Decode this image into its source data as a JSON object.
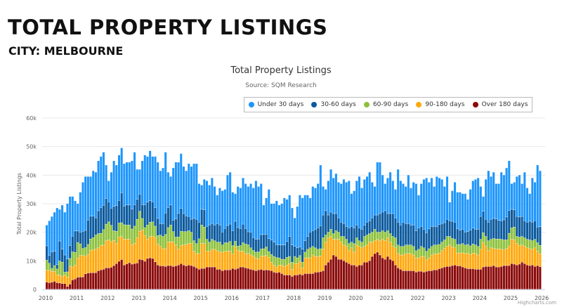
{
  "header": {
    "title": "TOTAL PROPERTY LISTINGS",
    "subtitle": "CITY: MELBOURNE"
  },
  "credit": "Highcharts.com",
  "chart_data": {
    "type": "bar",
    "stacked": true,
    "title": "Total Property Listings",
    "subtitle": "Source: SQM Research",
    "ylabel": "Total Property Listings",
    "xlabel": "",
    "x_start": "2010-01",
    "x_interval": "month",
    "ylim": [
      0,
      60
    ],
    "y_ticks": [
      {
        "v": 0,
        "label": "0"
      },
      {
        "v": 10,
        "label": "10k"
      },
      {
        "v": 20,
        "label": "20k"
      },
      {
        "v": 30,
        "label": "30k"
      },
      {
        "v": 40,
        "label": "40k"
      },
      {
        "v": 50,
        "label": "50k"
      },
      {
        "v": 60,
        "label": "60k"
      }
    ],
    "x_ticks": [
      "2010",
      "2011",
      "2012",
      "2013",
      "2014",
      "2015",
      "2016",
      "2017",
      "2018",
      "2019",
      "2020",
      "2021",
      "2022",
      "2023",
      "2024",
      "2025",
      "2026"
    ],
    "grid": true,
    "legend": "top-right",
    "series": [
      {
        "name": "Under 30 days",
        "color": "#1e96fc",
        "values": [
          7.3,
          12.1,
          12.4,
          13.7,
          19.9,
          11.1,
          15.5,
          15,
          19.4,
          17.2,
          13.9,
          10.6,
          9.6,
          14.1,
          17.2,
          18.9,
          15.3,
          13.9,
          15.9,
          16,
          17.5,
          17.9,
          18.6,
          11.7,
          7.4,
          12.6,
          16,
          14.2,
          15.9,
          15.7,
          14.9,
          15,
          15,
          16.9,
          18.4,
          10.5,
          8.7,
          15.4,
          17.4,
          16,
          17.5,
          15.9,
          17.9,
          19.7,
          18.5,
          19.5,
          21.3,
          12.4,
          10,
          18.3,
          19.9,
          17.9,
          19.2,
          16.5,
          15.8,
          18.5,
          18.5,
          19.2,
          19.5,
          13.5,
          8.5,
          10.7,
          16,
          14,
          16,
          13.5,
          10,
          13,
          14.5,
          13.7,
          17.7,
          18.2,
          13.5,
          9.7,
          14.4,
          14.2,
          16.2,
          15.7,
          15.9,
          17,
          17.4,
          20.5,
          18.4,
          17.9,
          10.3,
          12.7,
          17.3,
          12.8,
          13.5,
          15.4,
          14,
          14.5,
          16.5,
          14.8,
          14.5,
          13,
          10,
          14.5,
          18.2,
          18,
          16,
          14.5,
          12,
          15.5,
          14.5,
          15.5,
          21.3,
          10,
          7.5,
          12,
          15,
          12.5,
          14,
          12.5,
          13.5,
          15.5,
          15.5,
          16.5,
          11.5,
          13,
          15.5,
          18,
          14.5,
          16,
          16,
          17,
          12.5,
          10,
          18.5,
          18,
          13,
          9.5,
          12.5,
          14.5,
          11.5,
          10,
          18.5,
          15.5,
          13.5,
          13,
          17,
          13,
          15,
          16.5,
          11.5,
          15,
          17.5,
          19.2,
          16.3,
          17,
          14,
          17.5,
          16.3,
          15.5,
          12.7,
          15,
          6.5,
          10.7,
          14,
          12.8,
          13.3,
          12.5,
          13.5,
          11.3,
          14.3,
          16.6,
          17.5,
          18,
          10.5,
          5.2,
          14,
          18,
          15,
          16.2,
          12.4,
          12.9,
          17,
          15.7,
          17.2,
          17.4,
          9,
          9.7,
          14,
          14.7,
          11.5,
          17,
          12,
          9.7,
          15.5,
          13.5,
          21.7,
          19.6
        ]
      },
      {
        "name": "30-60 days",
        "color": "#0b5a9e",
        "values": [
          5,
          2.8,
          5.8,
          5,
          1.5,
          7,
          4.5,
          6,
          4.5,
          4.5,
          5.5,
          7.5,
          4,
          4,
          6,
          6,
          8.5,
          8,
          7.5,
          6,
          8,
          9,
          8.5,
          9,
          7,
          6,
          8.5,
          9,
          7.9,
          10.5,
          6.5,
          7,
          7,
          7,
          7.5,
          7,
          6,
          4.8,
          8,
          8,
          7.5,
          7,
          6.5,
          6,
          4,
          4.5,
          7.5,
          7,
          7,
          4,
          6.3,
          8.3,
          8,
          6.3,
          5.5,
          5,
          4.5,
          7.8,
          8.5,
          5.8,
          5.5,
          6,
          4.5,
          6,
          5.5,
          5.5,
          6.5,
          6,
          4.5,
          5,
          6,
          6,
          5.2,
          7,
          6.5,
          6,
          6.5,
          5.5,
          4.5,
          5.5,
          4.5,
          4.5,
          4.5,
          5,
          5,
          4.5,
          4.5,
          5,
          5,
          4.5,
          4.5,
          5,
          5,
          5.5,
          7,
          6,
          3.5,
          3.5,
          3,
          4.5,
          4,
          4.5,
          5.5,
          5.5,
          6.5,
          7.5,
          8,
          8,
          8.5,
          6,
          6,
          7,
          6,
          5,
          5,
          4.5,
          4.5,
          5.5,
          5.5,
          5.5,
          4.5,
          4.5,
          4.5,
          4,
          4.5,
          4.5,
          5,
          5,
          6,
          6.5,
          6.5,
          7.5,
          6,
          7,
          8,
          7,
          8,
          7.5,
          8.5,
          7.5,
          7.5,
          7,
          7.5,
          7,
          7.5,
          7,
          6.5,
          6.5,
          7,
          7,
          6.5,
          6.5,
          7,
          6.5,
          6,
          6,
          5.5,
          6,
          6,
          5.5,
          5,
          5,
          4.5,
          4.5,
          5.5,
          5.5,
          5.5,
          6,
          8,
          7.5,
          6,
          6.5,
          7,
          7,
          7,
          6.5,
          6.5,
          7,
          8,
          8,
          6.5,
          6,
          7,
          7,
          7,
          6,
          6,
          6.5,
          6.5,
          6.5,
          5.5,
          6.5
        ]
      },
      {
        "name": "60-90 days",
        "color": "#8dc13c",
        "values": [
          3.5,
          2.5,
          1,
          2,
          2,
          4.9,
          5,
          1,
          1.8,
          2.7,
          5.3,
          4.5,
          5.5,
          4,
          2.5,
          3,
          3.5,
          4,
          4.3,
          5,
          5,
          4.2,
          5.4,
          5.8,
          6.3,
          5.7,
          3.4,
          4.3,
          5,
          4.8,
          5,
          5,
          5,
          5.5,
          6,
          6.5,
          7,
          4,
          2.8,
          5,
          5,
          5,
          4,
          3,
          4,
          4.3,
          5,
          5,
          5.9,
          3.7,
          2.8,
          4.3,
          5,
          4.7,
          4.5,
          4.5,
          4,
          3.7,
          3.5,
          5.2,
          6.4,
          5.8,
          4.2,
          3.2,
          3.5,
          3,
          3,
          3.5,
          2.5,
          3,
          3,
          3.5,
          3,
          2,
          1.5,
          2,
          3,
          3.3,
          3,
          2.5,
          2,
          2,
          2.5,
          2.5,
          2.5,
          3,
          2,
          2.7,
          3,
          3.3,
          2.5,
          2,
          2.5,
          2.7,
          2.5,
          2.5,
          2.5,
          2,
          2,
          2,
          2,
          3,
          3.5,
          3,
          3,
          2.5,
          2.5,
          4,
          2.5,
          2,
          2.5,
          2,
          3,
          2.5,
          2,
          3,
          2.5,
          2.5,
          2,
          3,
          2.5,
          2,
          2,
          3.5,
          3.5,
          3,
          3.5,
          4,
          2.5,
          3,
          3,
          3,
          2.5,
          3,
          3.5,
          3.5,
          3,
          3,
          3,
          3,
          3,
          3,
          3,
          2.5,
          3,
          3.5,
          3,
          3,
          3.2,
          3,
          3.2,
          3.2,
          3,
          3,
          3,
          3.5,
          3,
          3,
          3,
          3,
          3,
          3.2,
          3,
          3,
          3,
          3.2,
          3,
          3,
          3.5,
          3.5,
          3.5,
          3.5,
          3,
          3.5,
          3.5,
          3.5,
          3.5,
          3.5,
          3,
          4.5,
          4,
          4.5,
          2.5,
          3,
          3,
          3,
          3,
          3,
          3,
          3,
          3,
          3
        ]
      },
      {
        "name": "90-180 days",
        "color": "#ffa90f",
        "values": [
          4.2,
          4.3,
          3.8,
          3.5,
          2.8,
          2.8,
          2.5,
          3,
          3.3,
          6.3,
          4.5,
          4.8,
          6.7,
          7.6,
          7.5,
          6.2,
          6.5,
          7.8,
          8,
          8.2,
          8,
          8.6,
          8.5,
          9.5,
          9.8,
          9,
          8.8,
          7,
          8.4,
          8.1,
          9.1,
          8.6,
          8.2,
          6.8,
          7.1,
          8.8,
          9.8,
          10.5,
          9,
          6.7,
          7.5,
          7.8,
          8.5,
          7.3,
          6.8,
          6,
          6.2,
          8.3,
          8.3,
          8.5,
          7.3,
          5.5,
          6.3,
          7,
          7.5,
          7.5,
          7.7,
          5.3,
          5,
          5.5,
          8.8,
          8.7,
          5.5,
          5.5,
          6.2,
          6.2,
          6.5,
          6,
          6.5,
          6.5,
          6.5,
          6.5,
          5,
          7.8,
          6.3,
          5.5,
          5.5,
          5,
          5.3,
          5,
          4.8,
          4.5,
          3.8,
          4.6,
          5,
          5,
          4.5,
          3,
          2.5,
          2,
          2.5,
          3,
          3,
          3.5,
          4,
          2.5,
          4,
          4,
          4.5,
          2.5,
          5.5,
          5.5,
          5.5,
          6.5,
          5.5,
          5.5,
          5.5,
          7.5,
          8,
          8.5,
          8,
          5.5,
          6,
          7,
          6,
          5.5,
          5.5,
          4.5,
          6,
          4.5,
          7.5,
          6.5,
          6,
          5.5,
          6,
          6.5,
          5,
          4.5,
          4.5,
          5,
          6.5,
          6.5,
          6.5,
          6,
          5,
          6,
          5,
          5,
          5.5,
          6,
          6,
          6,
          5.5,
          5,
          4.7,
          5.2,
          5.5,
          4,
          4.5,
          5.5,
          5.5,
          5.5,
          5.5,
          6,
          6.5,
          7,
          7.5,
          6.5,
          6,
          4.5,
          4.5,
          5,
          5,
          5.5,
          5,
          5.5,
          5.5,
          5,
          7,
          8.5,
          7,
          5.5,
          6.5,
          6,
          6.3,
          6.3,
          6,
          5.5,
          6,
          6.8,
          8.5,
          8.5,
          7.5,
          6.5,
          6,
          6,
          6,
          6,
          5.5,
          6.5,
          5,
          4.5
        ]
      },
      {
        "name": "Over 180 days",
        "color": "#8b0a0a",
        "values": [
          2.5,
          2.3,
          2.5,
          2.8,
          2.3,
          2.2,
          2,
          2,
          1,
          1.8,
          3.3,
          3.6,
          4.2,
          4.3,
          4.3,
          5.4,
          5.7,
          5.8,
          5.8,
          5.8,
          6.5,
          6.8,
          7,
          7.5,
          7.5,
          7.7,
          8.3,
          9,
          9.8,
          10.4,
          8.5,
          8.9,
          9.3,
          8.8,
          9,
          9.2,
          10.5,
          10.3,
          9.8,
          10.8,
          11,
          10.8,
          9.6,
          8.5,
          8.2,
          8.2,
          8,
          8.3,
          8.3,
          8,
          8.2,
          8.5,
          9,
          8.5,
          8.2,
          8.5,
          8.3,
          8,
          7.5,
          7,
          7.3,
          7.3,
          7.8,
          7.8,
          7.8,
          7.8,
          7,
          7,
          6.5,
          6.8,
          6.8,
          6.8,
          7.3,
          7,
          7.3,
          7.8,
          7.8,
          7.5,
          7.3,
          7,
          6.8,
          6.5,
          6.8,
          7,
          6.7,
          6.8,
          6.7,
          6.5,
          6,
          5.8,
          6,
          5.5,
          5,
          5,
          5,
          4.5,
          5,
          5,
          5.3,
          5,
          5.5,
          5.5,
          5.5,
          5.5,
          6,
          6,
          6.2,
          6.5,
          8.5,
          9.5,
          10.5,
          12,
          11.5,
          10.5,
          10.5,
          10,
          9.5,
          9,
          8.5,
          8.5,
          8,
          8.5,
          8.5,
          9.5,
          9.5,
          10,
          11.5,
          12.5,
          13,
          12,
          11,
          10.5,
          11.5,
          10.5,
          10,
          8.5,
          7.5,
          7,
          6.5,
          6.5,
          6.5,
          6.5,
          6.5,
          6,
          6.3,
          6.3,
          6,
          6.3,
          6.5,
          6.5,
          6.8,
          6.8,
          7.2,
          7.5,
          7.8,
          8,
          8,
          8.3,
          8.5,
          8.2,
          8.2,
          7.8,
          7.5,
          7.2,
          7.2,
          7.2,
          7,
          7,
          7,
          7.8,
          8,
          8,
          8,
          8.3,
          7.8,
          7.8,
          8,
          8.3,
          8.3,
          8.3,
          9,
          8.8,
          8.5,
          8.8,
          9.5,
          9,
          8.5,
          8.3,
          8.5,
          8,
          8.3,
          7.9
        ]
      }
    ]
  }
}
